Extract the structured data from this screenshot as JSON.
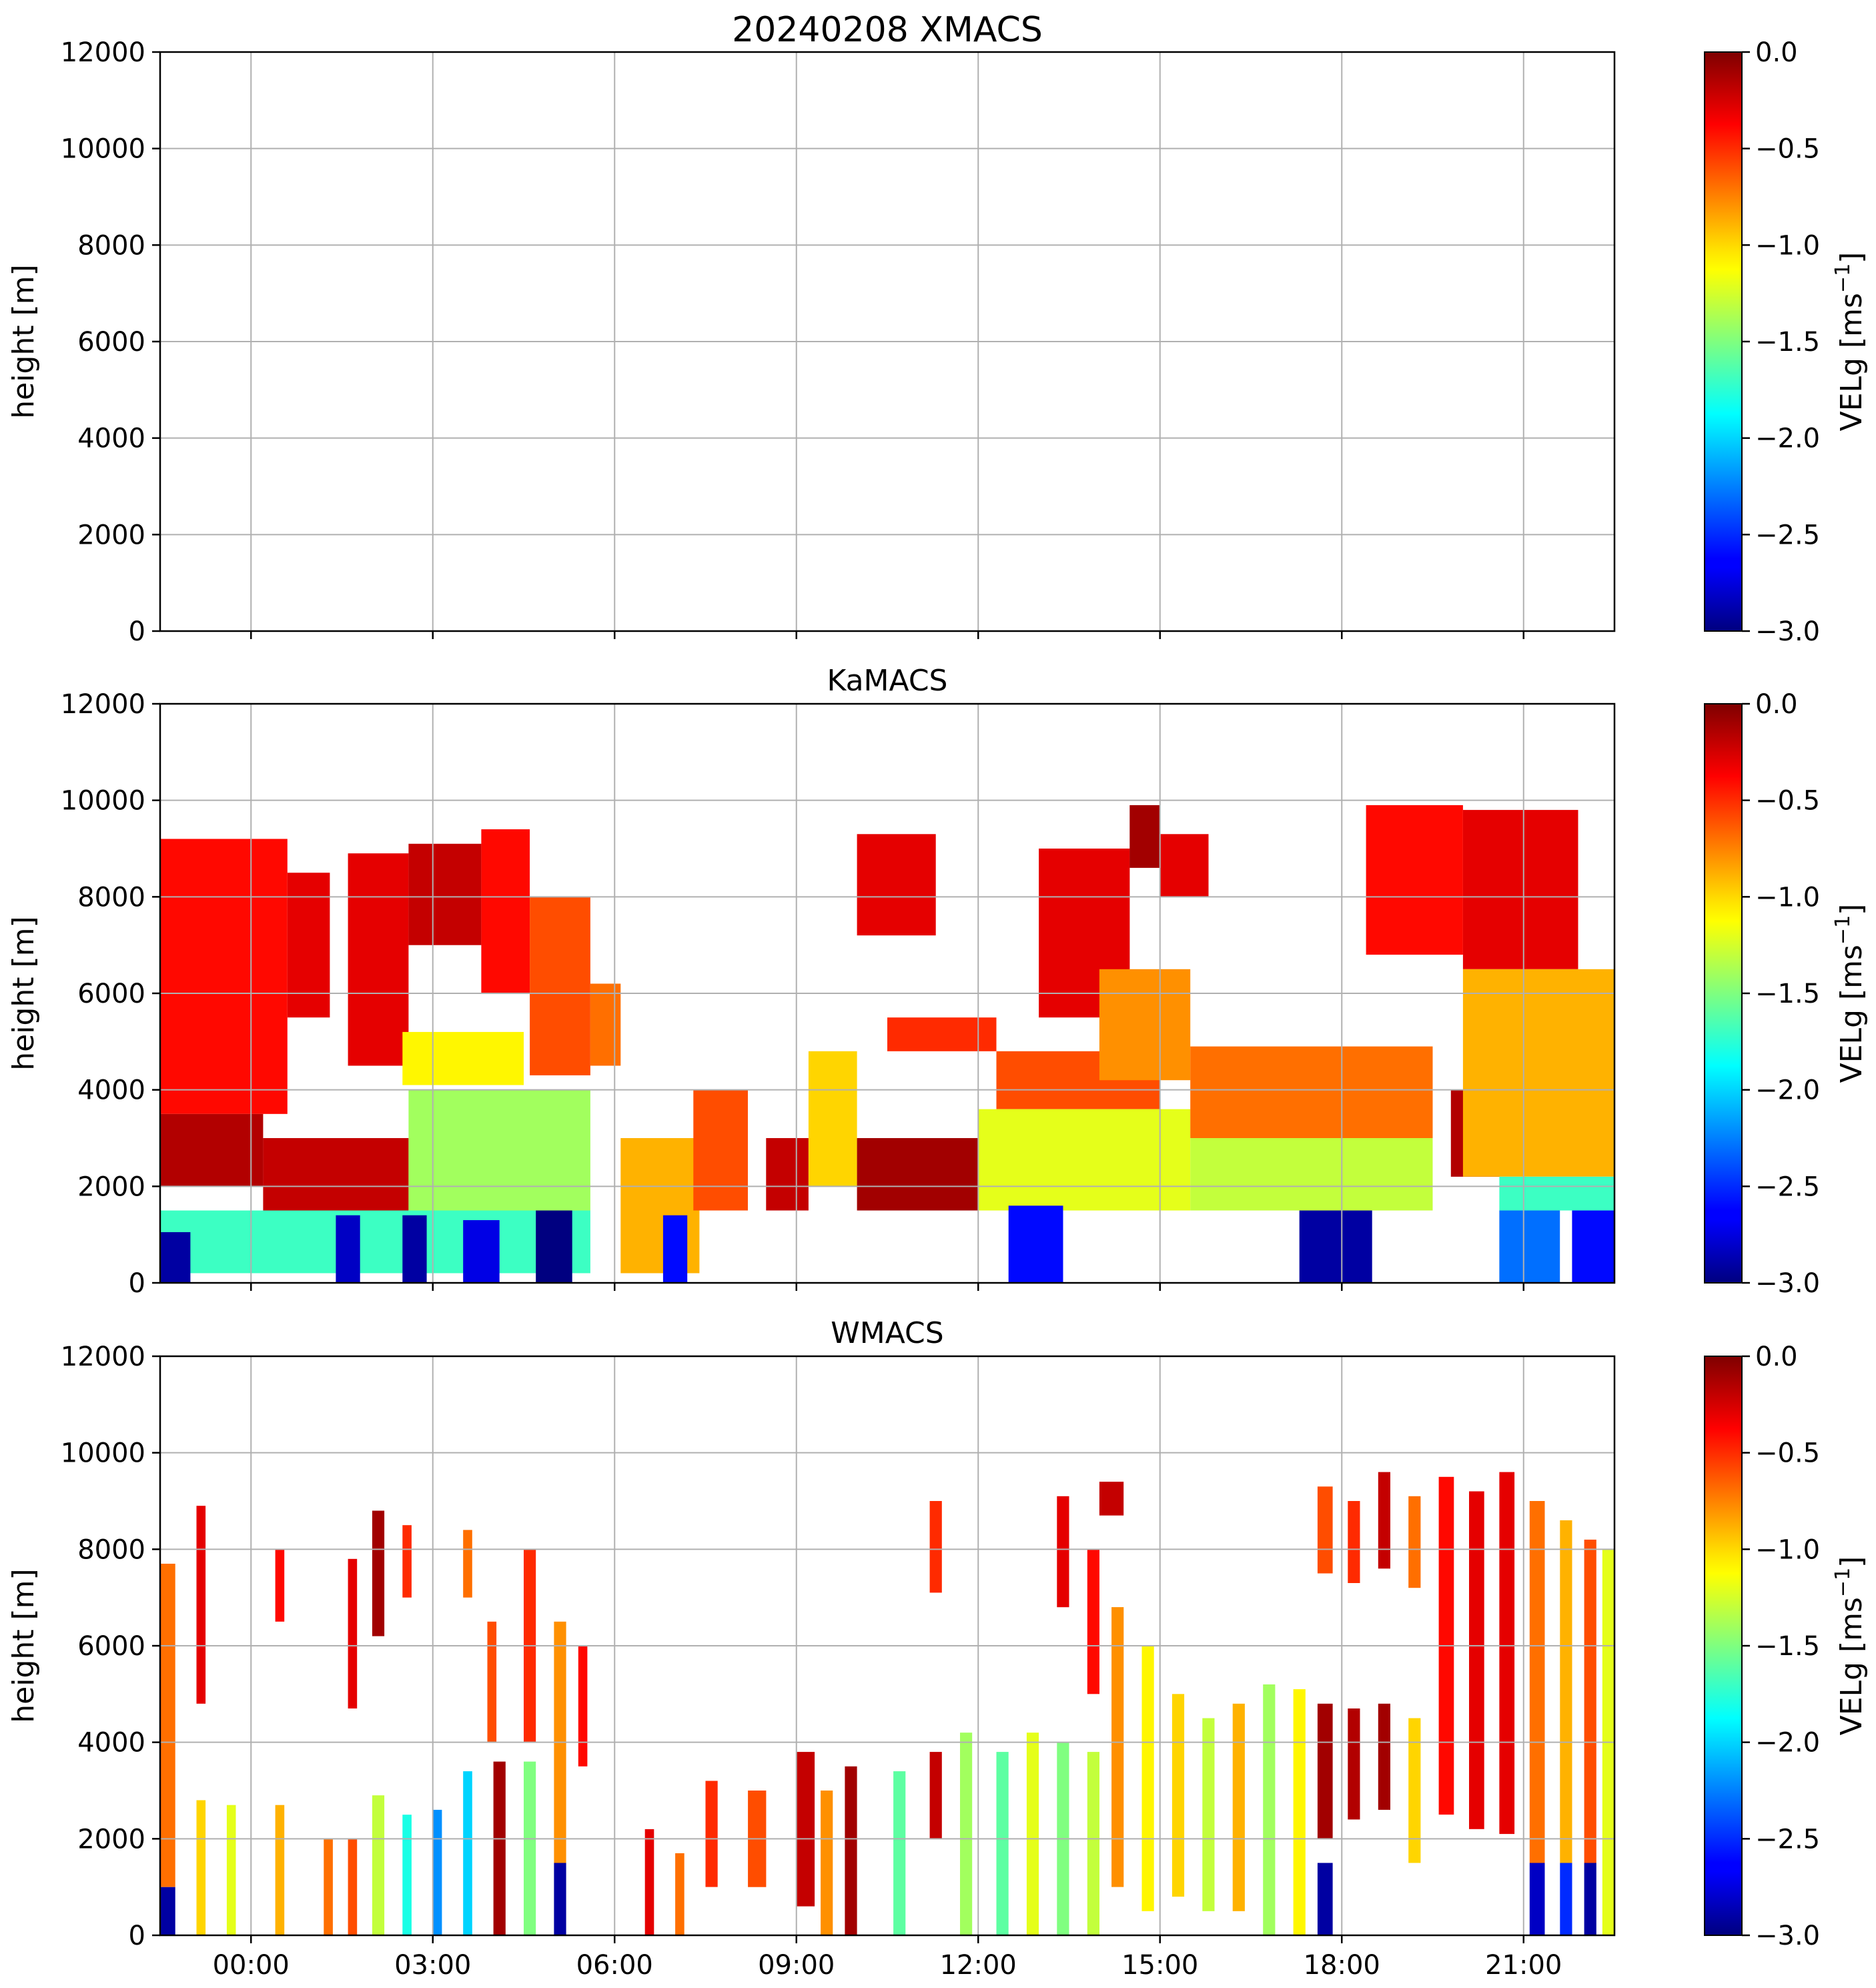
{
  "chart_data": [
    {
      "type": "heatmap",
      "title": "20240208 XMACS",
      "ylabel": "height [m]",
      "ylim": [
        0,
        12000
      ],
      "yticks": [
        "0",
        "2000",
        "4000",
        "6000",
        "8000",
        "10000",
        "12000"
      ],
      "xlim_hours": [
        -1.5,
        22.5
      ],
      "xticks_hours": [
        0,
        3,
        6,
        9,
        12,
        15,
        18,
        21
      ],
      "xticklabels": [],
      "grid": true,
      "colorbar": {
        "label": "VELg [ms",
        "label_sup": "−1",
        "label_close": "]",
        "range": [
          -3.0,
          0.0
        ],
        "ticks": [
          "0.0",
          "−0.5",
          "−1.0",
          "−1.5",
          "−2.0",
          "−2.5",
          "−3.0"
        ],
        "colormap": "jet"
      },
      "echoes": []
    },
    {
      "type": "heatmap",
      "title": "KaMACS",
      "ylabel": "height [m]",
      "ylim": [
        0,
        12000
      ],
      "yticks": [
        "0",
        "2000",
        "4000",
        "6000",
        "8000",
        "10000",
        "12000"
      ],
      "xlim_hours": [
        -1.5,
        22.5
      ],
      "xticks_hours": [
        0,
        3,
        6,
        9,
        12,
        15,
        18,
        21
      ],
      "xticklabels": [],
      "grid": true,
      "colorbar": {
        "label": "VELg [ms",
        "label_sup": "−1",
        "label_close": "]",
        "range": [
          -3.0,
          0.0
        ],
        "ticks": [
          "0.0",
          "−0.5",
          "−1.0",
          "−1.5",
          "−2.0",
          "−2.5",
          "−3.0"
        ],
        "colormap": "jet"
      },
      "echoes": [
        {
          "t0": -1.5,
          "t1": 0.6,
          "h0": 3500,
          "h1": 9200,
          "v": -0.4
        },
        {
          "t0": 0.6,
          "t1": 1.3,
          "h0": 5500,
          "h1": 8500,
          "v": -0.3
        },
        {
          "t0": 1.6,
          "t1": 2.6,
          "h0": 4500,
          "h1": 8900,
          "v": -0.3
        },
        {
          "t0": 2.6,
          "t1": 3.8,
          "h0": 7000,
          "h1": 9100,
          "v": -0.2
        },
        {
          "t0": 3.8,
          "t1": 4.6,
          "h0": 6000,
          "h1": 9400,
          "v": -0.4
        },
        {
          "t0": 4.6,
          "t1": 5.6,
          "h0": 4300,
          "h1": 8000,
          "v": -0.6
        },
        {
          "t0": 5.6,
          "t1": 6.1,
          "h0": 4500,
          "h1": 6200,
          "v": -0.7
        },
        {
          "t0": 2.5,
          "t1": 4.5,
          "h0": 4100,
          "h1": 5200,
          "v": -1.1
        },
        {
          "t0": -1.5,
          "t1": 0.2,
          "h0": 2000,
          "h1": 3500,
          "v": -0.15
        },
        {
          "t0": 0.2,
          "t1": 2.6,
          "h0": 1500,
          "h1": 3000,
          "v": -0.2
        },
        {
          "t0": 2.6,
          "t1": 5.6,
          "h0": 1500,
          "h1": 4000,
          "v": -1.4
        },
        {
          "t0": -1.5,
          "t1": 5.6,
          "h0": 200,
          "h1": 1500,
          "v": -1.7
        },
        {
          "t0": -1.5,
          "t1": -1.0,
          "h0": 0,
          "h1": 1050,
          "v": -2.9
        },
        {
          "t0": 1.4,
          "t1": 1.8,
          "h0": 0,
          "h1": 1400,
          "v": -2.8
        },
        {
          "t0": 2.5,
          "t1": 2.9,
          "h0": 0,
          "h1": 1400,
          "v": -2.9
        },
        {
          "t0": 3.5,
          "t1": 4.1,
          "h0": 0,
          "h1": 1300,
          "v": -2.7
        },
        {
          "t0": 4.7,
          "t1": 5.3,
          "h0": 0,
          "h1": 1500,
          "v": -3.0
        },
        {
          "t0": 6.1,
          "t1": 7.4,
          "h0": 200,
          "h1": 3000,
          "v": -0.9
        },
        {
          "t0": 7.3,
          "t1": 8.2,
          "h0": 1500,
          "h1": 4000,
          "v": -0.6
        },
        {
          "t0": 6.8,
          "t1": 7.2,
          "h0": 0,
          "h1": 1400,
          "v": -2.6
        },
        {
          "t0": 8.5,
          "t1": 9.2,
          "h0": 1500,
          "h1": 3000,
          "v": -0.2
        },
        {
          "t0": 9.2,
          "t1": 10.0,
          "h0": 2000,
          "h1": 4800,
          "v": -1.0
        },
        {
          "t0": 10.0,
          "t1": 12.0,
          "h0": 1500,
          "h1": 3000,
          "v": -0.1
        },
        {
          "t0": 10.5,
          "t1": 12.3,
          "h0": 4800,
          "h1": 5500,
          "v": -0.5
        },
        {
          "t0": 10.0,
          "t1": 11.3,
          "h0": 7200,
          "h1": 9300,
          "v": -0.3
        },
        {
          "t0": 12.3,
          "t1": 15.0,
          "h0": 3600,
          "h1": 4800,
          "v": -0.6
        },
        {
          "t0": 12.0,
          "t1": 15.5,
          "h0": 1500,
          "h1": 3600,
          "v": -1.2
        },
        {
          "t0": 12.5,
          "t1": 13.4,
          "h0": 0,
          "h1": 1600,
          "v": -2.6
        },
        {
          "t0": 13.0,
          "t1": 14.5,
          "h0": 5500,
          "h1": 9000,
          "v": -0.3
        },
        {
          "t0": 14.5,
          "t1": 15.0,
          "h0": 8600,
          "h1": 9900,
          "v": -0.1
        },
        {
          "t0": 15.0,
          "t1": 15.8,
          "h0": 8000,
          "h1": 9300,
          "v": -0.3
        },
        {
          "t0": 14.0,
          "t1": 15.5,
          "h0": 4200,
          "h1": 6500,
          "v": -0.8
        },
        {
          "t0": 15.5,
          "t1": 19.5,
          "h0": 3000,
          "h1": 4900,
          "v": -0.7
        },
        {
          "t0": 15.5,
          "t1": 19.5,
          "h0": 1500,
          "h1": 3000,
          "v": -1.3
        },
        {
          "t0": 17.3,
          "t1": 18.5,
          "h0": 0,
          "h1": 1500,
          "v": -2.9
        },
        {
          "t0": 18.4,
          "t1": 20.0,
          "h0": 6800,
          "h1": 9900,
          "v": -0.4
        },
        {
          "t0": 20.0,
          "t1": 21.9,
          "h0": 6500,
          "h1": 9800,
          "v": -0.3
        },
        {
          "t0": 19.8,
          "t1": 20.6,
          "h0": 2200,
          "h1": 4000,
          "v": -0.15
        },
        {
          "t0": 20.0,
          "t1": 22.5,
          "h0": 2200,
          "h1": 6500,
          "v": -0.9
        },
        {
          "t0": 20.6,
          "t1": 22.5,
          "h0": 1500,
          "h1": 2200,
          "v": -1.7
        },
        {
          "t0": 20.6,
          "t1": 21.6,
          "h0": 0,
          "h1": 1500,
          "v": -2.3
        },
        {
          "t0": 21.8,
          "t1": 22.5,
          "h0": 0,
          "h1": 1500,
          "v": -2.6
        }
      ]
    },
    {
      "type": "heatmap",
      "title": "WMACS",
      "ylabel": "height [m]",
      "ylim": [
        0,
        12000
      ],
      "yticks": [
        "0",
        "2000",
        "4000",
        "6000",
        "8000",
        "10000",
        "12000"
      ],
      "xlim_hours": [
        -1.5,
        22.5
      ],
      "xticks_hours": [
        0,
        3,
        6,
        9,
        12,
        15,
        18,
        21
      ],
      "xticklabels": [
        "00:00",
        "03:00",
        "06:00",
        "09:00",
        "12:00",
        "15:00",
        "18:00",
        "21:00"
      ],
      "grid": true,
      "colorbar": {
        "label": "VELg [ms",
        "label_sup": "−1",
        "label_close": "]",
        "range": [
          -3.0,
          0.0
        ],
        "ticks": [
          "0.0",
          "−0.5",
          "−1.0",
          "−1.5",
          "−2.0",
          "−2.5",
          "−3.0"
        ],
        "colormap": "jet"
      },
      "echoes": [
        {
          "t0": -1.5,
          "t1": -1.25,
          "h0": 1000,
          "h1": 7700,
          "v": -0.7
        },
        {
          "t0": -1.5,
          "t1": -1.25,
          "h0": 0,
          "h1": 1000,
          "v": -2.9
        },
        {
          "t0": -0.9,
          "t1": -0.75,
          "h0": 4800,
          "h1": 8900,
          "v": -0.3
        },
        {
          "t0": -0.9,
          "t1": -0.75,
          "h0": 0,
          "h1": 2800,
          "v": -1.0
        },
        {
          "t0": -0.4,
          "t1": -0.25,
          "h0": 0,
          "h1": 2700,
          "v": -1.2
        },
        {
          "t0": 0.4,
          "t1": 0.55,
          "h0": 6500,
          "h1": 8000,
          "v": -0.4
        },
        {
          "t0": 0.4,
          "t1": 0.55,
          "h0": 0,
          "h1": 2700,
          "v": -0.9
        },
        {
          "t0": 1.2,
          "t1": 1.35,
          "h0": 0,
          "h1": 2000,
          "v": -0.7
        },
        {
          "t0": 1.6,
          "t1": 1.75,
          "h0": 4700,
          "h1": 7800,
          "v": -0.3
        },
        {
          "t0": 1.6,
          "t1": 1.75,
          "h0": 0,
          "h1": 2000,
          "v": -0.6
        },
        {
          "t0": 2.0,
          "t1": 2.2,
          "h0": 6200,
          "h1": 8800,
          "v": -0.1
        },
        {
          "t0": 2.0,
          "t1": 2.2,
          "h0": 0,
          "h1": 2900,
          "v": -1.3
        },
        {
          "t0": 2.5,
          "t1": 2.65,
          "h0": 7000,
          "h1": 8500,
          "v": -0.5
        },
        {
          "t0": 2.5,
          "t1": 2.65,
          "h0": 0,
          "h1": 2500,
          "v": -1.8
        },
        {
          "t0": 3.0,
          "t1": 3.15,
          "h0": 0,
          "h1": 2600,
          "v": -2.2
        },
        {
          "t0": 3.5,
          "t1": 3.65,
          "h0": 7000,
          "h1": 8400,
          "v": -0.7
        },
        {
          "t0": 3.5,
          "t1": 3.65,
          "h0": 0,
          "h1": 3400,
          "v": -2.0
        },
        {
          "t0": 3.9,
          "t1": 4.05,
          "h0": 4000,
          "h1": 6500,
          "v": -0.6
        },
        {
          "t0": 4.0,
          "t1": 4.2,
          "h0": 0,
          "h1": 3600,
          "v": -0.1
        },
        {
          "t0": 4.5,
          "t1": 4.7,
          "h0": 4000,
          "h1": 8000,
          "v": -0.5
        },
        {
          "t0": 4.5,
          "t1": 4.7,
          "h0": 0,
          "h1": 3600,
          "v": -1.5
        },
        {
          "t0": 5.0,
          "t1": 5.2,
          "h0": 1500,
          "h1": 6500,
          "v": -0.8
        },
        {
          "t0": 5.0,
          "t1": 5.2,
          "h0": 0,
          "h1": 1500,
          "v": -2.9
        },
        {
          "t0": 5.4,
          "t1": 5.55,
          "h0": 3500,
          "h1": 6000,
          "v": -0.4
        },
        {
          "t0": 6.5,
          "t1": 6.65,
          "h0": 0,
          "h1": 2200,
          "v": -0.3
        },
        {
          "t0": 7.0,
          "t1": 7.15,
          "h0": 0,
          "h1": 1700,
          "v": -0.7
        },
        {
          "t0": 7.5,
          "t1": 7.7,
          "h0": 1000,
          "h1": 3200,
          "v": -0.5
        },
        {
          "t0": 8.2,
          "t1": 8.5,
          "h0": 1000,
          "h1": 3000,
          "v": -0.6
        },
        {
          "t0": 9.0,
          "t1": 9.3,
          "h0": 600,
          "h1": 3800,
          "v": -0.2
        },
        {
          "t0": 9.4,
          "t1": 9.6,
          "h0": 0,
          "h1": 3000,
          "v": -0.8
        },
        {
          "t0": 9.8,
          "t1": 10.0,
          "h0": 0,
          "h1": 3500,
          "v": -0.1
        },
        {
          "t0": 10.6,
          "t1": 10.8,
          "h0": 0,
          "h1": 3400,
          "v": -1.6
        },
        {
          "t0": 11.2,
          "t1": 11.4,
          "h0": 7100,
          "h1": 9000,
          "v": -0.5
        },
        {
          "t0": 11.2,
          "t1": 11.4,
          "h0": 2000,
          "h1": 3800,
          "v": -0.2
        },
        {
          "t0": 11.7,
          "t1": 11.9,
          "h0": 0,
          "h1": 4200,
          "v": -1.4
        },
        {
          "t0": 12.3,
          "t1": 12.5,
          "h0": 0,
          "h1": 3800,
          "v": -1.6
        },
        {
          "t0": 12.8,
          "t1": 13.0,
          "h0": 0,
          "h1": 4200,
          "v": -1.2
        },
        {
          "t0": 13.3,
          "t1": 13.5,
          "h0": 6800,
          "h1": 9100,
          "v": -0.3
        },
        {
          "t0": 13.3,
          "t1": 13.5,
          "h0": 0,
          "h1": 4000,
          "v": -1.5
        },
        {
          "t0": 13.8,
          "t1": 14.0,
          "h0": 5000,
          "h1": 8000,
          "v": -0.4
        },
        {
          "t0": 13.8,
          "t1": 14.0,
          "h0": 0,
          "h1": 3800,
          "v": -1.3
        },
        {
          "t0": 14.0,
          "t1": 14.4,
          "h0": 8700,
          "h1": 9400,
          "v": -0.2
        },
        {
          "t0": 14.2,
          "t1": 14.4,
          "h0": 1000,
          "h1": 6800,
          "v": -0.8
        },
        {
          "t0": 14.7,
          "t1": 14.9,
          "h0": 500,
          "h1": 6000,
          "v": -1.1
        },
        {
          "t0": 15.2,
          "t1": 15.4,
          "h0": 800,
          "h1": 5000,
          "v": -1.0
        },
        {
          "t0": 15.7,
          "t1": 15.9,
          "h0": 500,
          "h1": 4500,
          "v": -1.3
        },
        {
          "t0": 16.2,
          "t1": 16.4,
          "h0": 500,
          "h1": 4800,
          "v": -0.9
        },
        {
          "t0": 16.7,
          "t1": 16.9,
          "h0": 0,
          "h1": 5200,
          "v": -1.4
        },
        {
          "t0": 17.2,
          "t1": 17.4,
          "h0": 0,
          "h1": 5100,
          "v": -1.1
        },
        {
          "t0": 17.6,
          "t1": 17.85,
          "h0": 2000,
          "h1": 4800,
          "v": -0.1
        },
        {
          "t0": 17.6,
          "t1": 17.85,
          "h0": 0,
          "h1": 1500,
          "v": -2.9
        },
        {
          "t0": 17.6,
          "t1": 17.85,
          "h0": 7500,
          "h1": 9300,
          "v": -0.6
        },
        {
          "t0": 18.1,
          "t1": 18.3,
          "h0": 2400,
          "h1": 4700,
          "v": -0.15
        },
        {
          "t0": 18.1,
          "t1": 18.3,
          "h0": 7300,
          "h1": 9000,
          "v": -0.5
        },
        {
          "t0": 18.6,
          "t1": 18.8,
          "h0": 2600,
          "h1": 4800,
          "v": -0.1
        },
        {
          "t0": 18.6,
          "t1": 18.8,
          "h0": 7600,
          "h1": 9600,
          "v": -0.2
        },
        {
          "t0": 19.1,
          "t1": 19.3,
          "h0": 1500,
          "h1": 4500,
          "v": -1.0
        },
        {
          "t0": 19.1,
          "t1": 19.3,
          "h0": 7200,
          "h1": 9100,
          "v": -0.7
        },
        {
          "t0": 19.6,
          "t1": 19.85,
          "h0": 2500,
          "h1": 9500,
          "v": -0.4
        },
        {
          "t0": 20.1,
          "t1": 20.35,
          "h0": 2200,
          "h1": 9200,
          "v": -0.3
        },
        {
          "t0": 20.6,
          "t1": 20.85,
          "h0": 2100,
          "h1": 9600,
          "v": -0.3
        },
        {
          "t0": 21.1,
          "t1": 21.35,
          "h0": 1500,
          "h1": 9000,
          "v": -0.7
        },
        {
          "t0": 21.1,
          "t1": 21.35,
          "h0": 0,
          "h1": 1500,
          "v": -2.8
        },
        {
          "t0": 21.6,
          "t1": 21.8,
          "h0": 1500,
          "h1": 8600,
          "v": -0.9
        },
        {
          "t0": 21.6,
          "t1": 21.8,
          "h0": 0,
          "h1": 1500,
          "v": -2.5
        },
        {
          "t0": 22.0,
          "t1": 22.2,
          "h0": 1500,
          "h1": 8200,
          "v": -0.6
        },
        {
          "t0": 22.0,
          "t1": 22.2,
          "h0": 0,
          "h1": 1500,
          "v": -2.9
        },
        {
          "t0": 22.3,
          "t1": 22.5,
          "h0": 0,
          "h1": 8000,
          "v": -1.2
        }
      ]
    }
  ]
}
